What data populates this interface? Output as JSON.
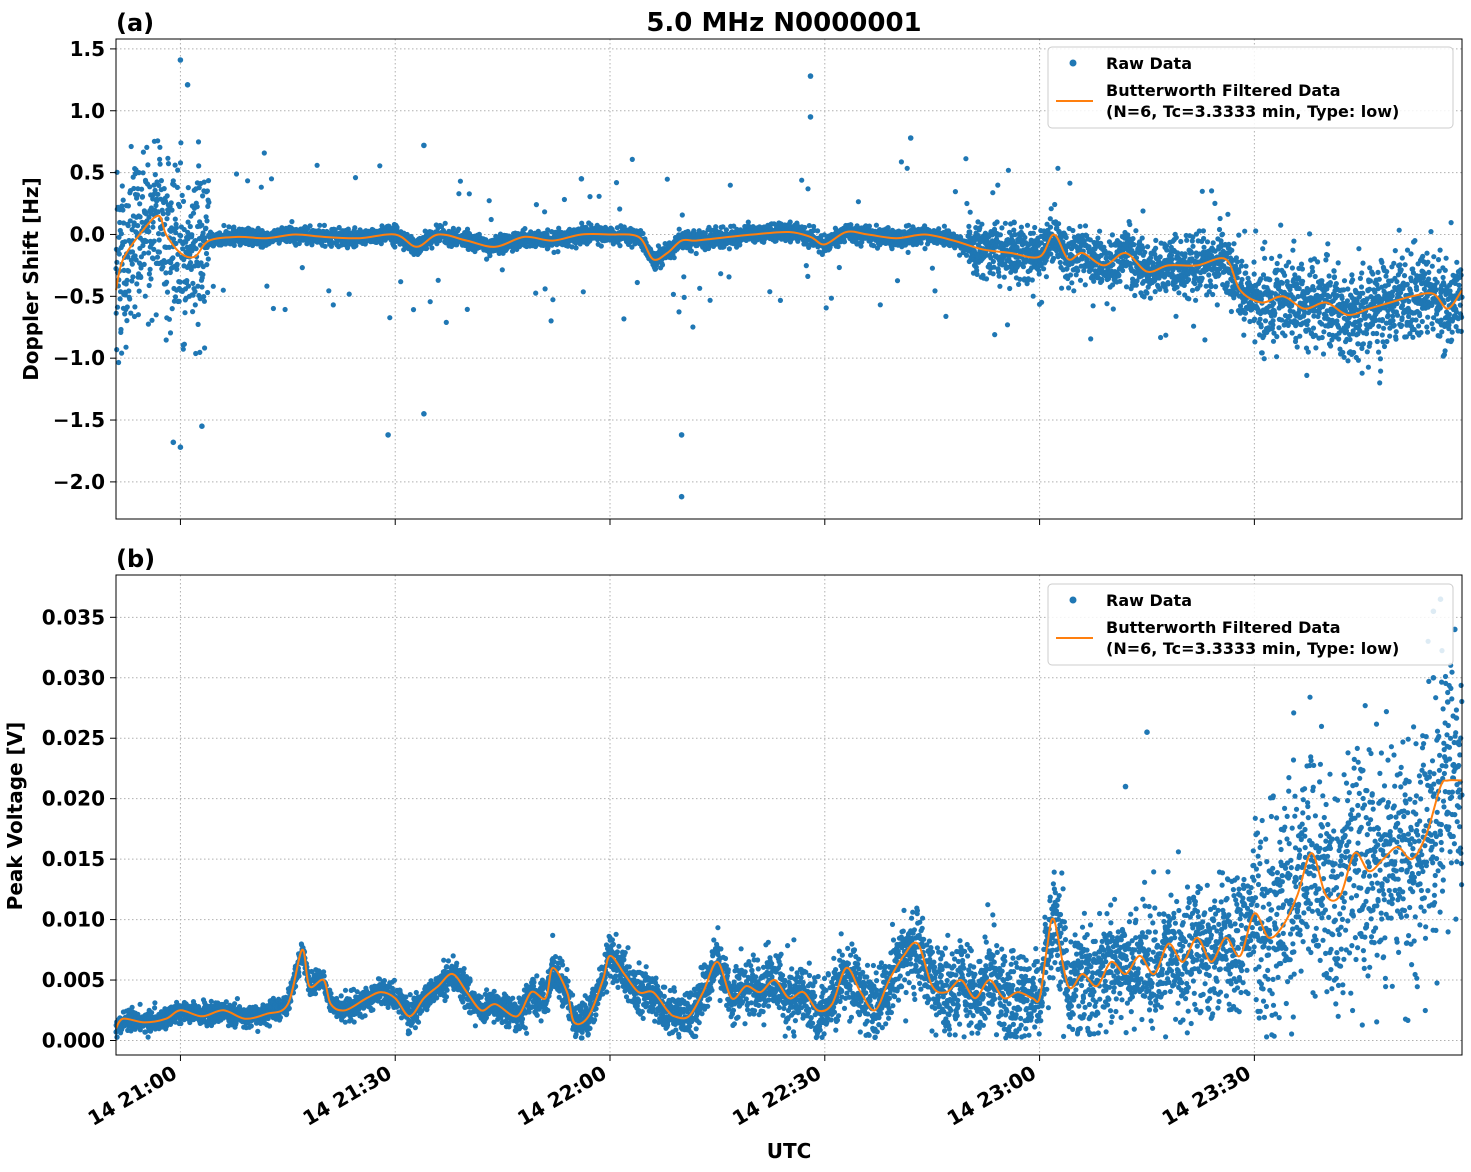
{
  "figure": {
    "title": "5.0 MHz N0000001",
    "xlabel": "UTC",
    "x_tick_labels": [
      "14 21:00",
      "14 21:30",
      "14 22:00",
      "14 22:30",
      "14 23:00",
      "14 23:30"
    ],
    "colors": {
      "raw": "#1f77b4",
      "filtered": "#ff7f0e",
      "grid": "#b0b0b0"
    }
  },
  "chart_data": [
    {
      "type": "scatter",
      "panel_label": "(a)",
      "ylabel": "Doppler Shift [Hz]",
      "xlim": [
        "20:51",
        "23:59"
      ],
      "ylim": [
        -2.3,
        1.58
      ],
      "y_ticks": [
        1.5,
        1.0,
        0.5,
        0.0,
        -0.5,
        -1.0,
        -1.5,
        -2.0
      ],
      "y_tick_labels": [
        "1.5",
        "1.0",
        "0.5",
        "0.0",
        "−0.5",
        "−1.0",
        "−1.5",
        "−2.0"
      ],
      "grid": true,
      "legend": {
        "position": "top-right",
        "entries": [
          {
            "label": "Raw Data",
            "marker": "dot"
          },
          {
            "label": "Butterworth Filtered Data",
            "label2": "(N=6, Tc=3.3333 min, Type: low)",
            "marker": "line"
          }
        ]
      },
      "series": [
        {
          "name": "Raw Data",
          "kind": "scatter",
          "note": "approximately 10,000 samples, 1 s cadence; densest around the filtered trend with a spread of about ±0.3 Hz and occasional outliers",
          "x": [
            "20:51",
            "21:00",
            "21:05",
            "21:10",
            "21:20",
            "21:30",
            "21:40",
            "21:50",
            "22:00",
            "22:10",
            "22:20",
            "22:30",
            "22:40",
            "22:50",
            "23:00",
            "23:10",
            "23:20",
            "23:30",
            "23:40",
            "23:50",
            "23:59"
          ],
          "y": [
            -0.45,
            -0.15,
            -0.02,
            -0.02,
            -0.03,
            -0.03,
            -0.05,
            -0.03,
            -0.02,
            -0.08,
            0.0,
            -0.05,
            -0.01,
            -0.1,
            -0.12,
            -0.2,
            -0.25,
            -0.55,
            -0.65,
            -0.55,
            -0.45
          ]
        },
        {
          "name": "Butterworth Filtered Data",
          "kind": "line",
          "x": [
            "20:51",
            "20:52",
            "20:55",
            "20:57",
            "20:58",
            "21:00",
            "21:02",
            "21:04",
            "21:08",
            "21:12",
            "21:16",
            "21:20",
            "21:25",
            "21:30",
            "21:33",
            "21:36",
            "21:40",
            "21:44",
            "21:48",
            "21:52",
            "21:56",
            "22:00",
            "22:04",
            "22:06",
            "22:08",
            "22:10",
            "22:12",
            "22:15",
            "22:20",
            "22:25",
            "22:28",
            "22:30",
            "22:33",
            "22:36",
            "22:40",
            "22:44",
            "22:48",
            "22:52",
            "22:56",
            "23:00",
            "23:02",
            "23:04",
            "23:06",
            "23:09",
            "23:12",
            "23:15",
            "23:18",
            "23:22",
            "23:26",
            "23:28",
            "23:31",
            "23:34",
            "23:37",
            "23:40",
            "23:43",
            "23:46",
            "23:49",
            "23:52",
            "23:55",
            "23:57",
            "23:59"
          ],
          "y": [
            -0.45,
            -0.2,
            0.05,
            0.15,
            0.0,
            -0.15,
            -0.18,
            -0.05,
            -0.02,
            -0.03,
            0.0,
            -0.02,
            -0.03,
            0.0,
            -0.1,
            0.0,
            -0.05,
            -0.1,
            -0.02,
            -0.05,
            0.0,
            0.0,
            -0.02,
            -0.2,
            -0.15,
            -0.05,
            -0.05,
            -0.03,
            0.0,
            0.02,
            -0.02,
            -0.08,
            0.02,
            0.0,
            -0.03,
            0.0,
            -0.05,
            -0.12,
            -0.15,
            -0.18,
            0.0,
            -0.2,
            -0.15,
            -0.25,
            -0.15,
            -0.3,
            -0.25,
            -0.25,
            -0.2,
            -0.45,
            -0.55,
            -0.5,
            -0.6,
            -0.55,
            -0.65,
            -0.6,
            -0.55,
            -0.5,
            -0.48,
            -0.6,
            -0.45
          ]
        }
      ],
      "outliers": [
        {
          "x": "21:00",
          "y": 1.41
        },
        {
          "x": "21:01",
          "y": 1.21
        },
        {
          "x": "20:59",
          "y": -1.68
        },
        {
          "x": "21:00",
          "y": -1.72
        },
        {
          "x": "21:03",
          "y": -1.55
        },
        {
          "x": "21:29",
          "y": -1.62
        },
        {
          "x": "21:34",
          "y": -1.45
        },
        {
          "x": "22:10",
          "y": -2.12
        },
        {
          "x": "22:10",
          "y": -1.62
        },
        {
          "x": "22:28",
          "y": 1.28
        },
        {
          "x": "22:28",
          "y": 0.95
        },
        {
          "x": "22:42",
          "y": 0.78
        },
        {
          "x": "21:34",
          "y": 0.72
        },
        {
          "x": "21:56",
          "y": 0.45
        }
      ]
    },
    {
      "type": "scatter",
      "panel_label": "(b)",
      "ylabel": "Peak Voltage [V]",
      "xlim": [
        "20:51",
        "23:59"
      ],
      "ylim": [
        -0.0012,
        0.0385
      ],
      "y_ticks": [
        0.0,
        0.005,
        0.01,
        0.015,
        0.02,
        0.025,
        0.03,
        0.035
      ],
      "y_tick_labels": [
        "0.000",
        "0.005",
        "0.010",
        "0.015",
        "0.020",
        "0.025",
        "0.030",
        "0.035"
      ],
      "grid": true,
      "legend": {
        "position": "top-right",
        "entries": [
          {
            "label": "Raw Data",
            "marker": "dot"
          },
          {
            "label": "Butterworth Filtered Data",
            "label2": "(N=6, Tc=3.3333 min, Type: low)",
            "marker": "line"
          }
        ]
      },
      "series": [
        {
          "name": "Raw Data",
          "kind": "scatter",
          "note": "approximately 10,000 samples, 1 s cadence; spread grows from about ±0.0008 V early to about ±0.004 V after 23:30",
          "x": [
            "20:51",
            "21:00",
            "21:10",
            "21:20",
            "21:30",
            "21:40",
            "21:50",
            "22:00",
            "22:10",
            "22:20",
            "22:30",
            "22:40",
            "22:50",
            "23:00",
            "23:10",
            "23:20",
            "23:30",
            "23:40",
            "23:50",
            "23:59"
          ],
          "y": [
            0.0015,
            0.0022,
            0.0022,
            0.004,
            0.003,
            0.004,
            0.0035,
            0.004,
            0.0025,
            0.004,
            0.0035,
            0.005,
            0.0045,
            0.0055,
            0.006,
            0.007,
            0.009,
            0.013,
            0.015,
            0.02
          ]
        },
        {
          "name": "Butterworth Filtered Data",
          "kind": "line",
          "x": [
            "20:51",
            "20:52",
            "20:55",
            "20:58",
            "21:00",
            "21:03",
            "21:06",
            "21:09",
            "21:12",
            "21:15",
            "21:17",
            "21:18",
            "21:20",
            "21:21",
            "21:23",
            "21:26",
            "21:28",
            "21:30",
            "21:32",
            "21:34",
            "21:36",
            "21:38",
            "21:40",
            "21:42",
            "21:44",
            "21:47",
            "21:49",
            "21:51",
            "21:52",
            "21:54",
            "21:55",
            "21:57",
            "21:59",
            "22:00",
            "22:02",
            "22:04",
            "22:06",
            "22:08",
            "22:09",
            "22:11",
            "22:13",
            "22:15",
            "22:17",
            "22:19",
            "22:21",
            "22:23",
            "22:25",
            "22:27",
            "22:29",
            "22:31",
            "22:33",
            "22:35",
            "22:37",
            "22:39",
            "22:41",
            "22:43",
            "22:45",
            "22:47",
            "22:49",
            "22:51",
            "22:53",
            "22:55",
            "22:57",
            "22:59",
            "23:00",
            "23:01",
            "23:02",
            "23:04",
            "23:06",
            "23:08",
            "23:10",
            "23:12",
            "23:14",
            "23:16",
            "23:18",
            "23:20",
            "23:22",
            "23:24",
            "23:26",
            "23:28",
            "23:30",
            "23:32",
            "23:34",
            "23:36",
            "23:38",
            "23:40",
            "23:42",
            "23:44",
            "23:46",
            "23:48",
            "23:50",
            "23:52",
            "23:54",
            "23:56",
            "23:57",
            "23:59"
          ],
          "y": [
            0.001,
            0.0018,
            0.0015,
            0.0018,
            0.0025,
            0.002,
            0.0025,
            0.0018,
            0.0022,
            0.003,
            0.0075,
            0.0045,
            0.005,
            0.003,
            0.0025,
            0.0035,
            0.004,
            0.0035,
            0.002,
            0.0035,
            0.0045,
            0.0055,
            0.004,
            0.0025,
            0.003,
            0.002,
            0.004,
            0.0035,
            0.006,
            0.004,
            0.0015,
            0.002,
            0.005,
            0.007,
            0.0055,
            0.004,
            0.004,
            0.0025,
            0.002,
            0.002,
            0.004,
            0.0065,
            0.0035,
            0.0045,
            0.004,
            0.005,
            0.0035,
            0.004,
            0.0025,
            0.003,
            0.006,
            0.004,
            0.0025,
            0.005,
            0.007,
            0.008,
            0.0045,
            0.004,
            0.005,
            0.0035,
            0.005,
            0.0035,
            0.004,
            0.0035,
            0.0035,
            0.0075,
            0.01,
            0.0045,
            0.0055,
            0.0045,
            0.0065,
            0.0055,
            0.007,
            0.0055,
            0.008,
            0.0065,
            0.0085,
            0.0065,
            0.0085,
            0.007,
            0.0105,
            0.0085,
            0.0095,
            0.012,
            0.0155,
            0.012,
            0.012,
            0.0155,
            0.014,
            0.015,
            0.016,
            0.015,
            0.017,
            0.021,
            0.0215,
            0.0215
          ]
        }
      ],
      "outliers": [
        {
          "x": "23:12",
          "y": 0.021
        },
        {
          "x": "23:15",
          "y": 0.0255
        },
        {
          "x": "23:55",
          "y": 0.0355
        },
        {
          "x": "23:56",
          "y": 0.0365
        },
        {
          "x": "23:58",
          "y": 0.034
        },
        {
          "x": "23:55",
          "y": 0.03
        },
        {
          "x": "23:57",
          "y": 0.028
        }
      ]
    }
  ]
}
